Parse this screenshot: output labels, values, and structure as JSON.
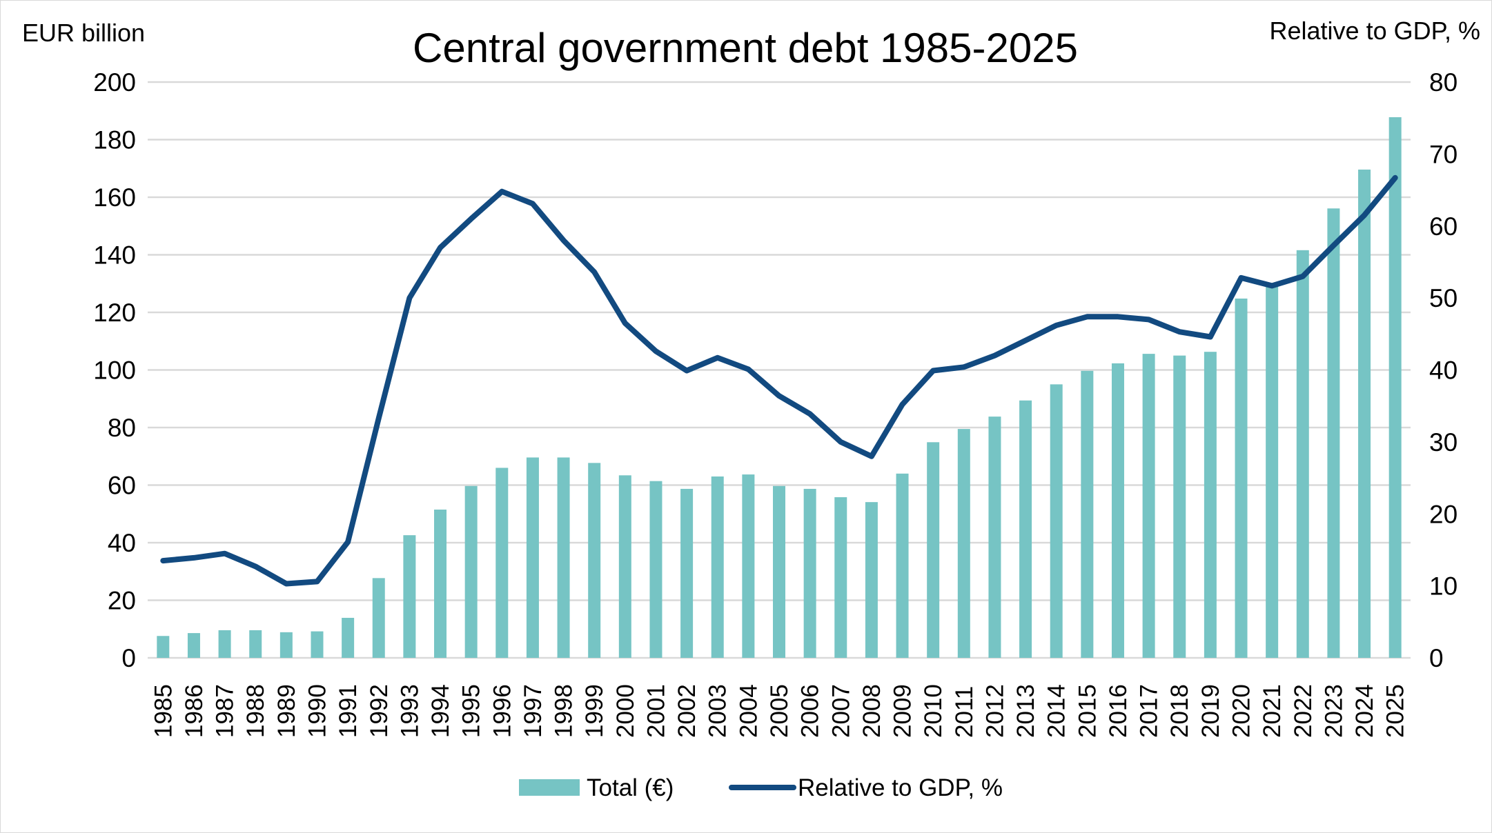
{
  "chart_data": {
    "type": "bar",
    "title": "Central government debt 1985-2025",
    "ylabel": "EUR billion",
    "y2label": "Relative to GDP, %",
    "ylim": [
      0,
      200
    ],
    "y2lim": [
      0,
      80
    ],
    "yticks": [
      "0",
      "20",
      "40",
      "60",
      "80",
      "100",
      "120",
      "140",
      "160",
      "180",
      "200"
    ],
    "y2ticks": [
      "0",
      "10",
      "20",
      "30",
      "40",
      "50",
      "60",
      "70",
      "80"
    ],
    "grid": true,
    "legend_position": "bottom",
    "categories": [
      "1985",
      "1986",
      "1987",
      "1988",
      "1989",
      "1990",
      "1991",
      "1992",
      "1993",
      "1994",
      "1995",
      "1996",
      "1997",
      "1998",
      "1999",
      "2000",
      "2001",
      "2002",
      "2003",
      "2004",
      "2005",
      "2006",
      "2007",
      "2008",
      "2009",
      "2010",
      "2011",
      "2012",
      "2013",
      "2014",
      "2015",
      "2016",
      "2017",
      "2018",
      "2019",
      "2020",
      "2021",
      "2022",
      "2023",
      "2024",
      "2025"
    ],
    "series": [
      {
        "name": "Total (€)",
        "type": "bar",
        "axis": "left",
        "color": "#76C4C4",
        "values": [
          7.6,
          8.6,
          9.6,
          9.6,
          8.9,
          9.2,
          13.9,
          27.7,
          42.6,
          51.5,
          59.7,
          66.0,
          69.6,
          69.6,
          67.7,
          63.4,
          61.4,
          58.7,
          63.0,
          63.7,
          59.7,
          58.7,
          55.8,
          54.1,
          64.0,
          74.9,
          79.5,
          83.8,
          89.4,
          95.0,
          99.7,
          102.3,
          105.6,
          105.0,
          106.3,
          124.8,
          129.0,
          141.6,
          156.1,
          169.6,
          187.8
        ]
      },
      {
        "name": "Relative to GDP, %",
        "type": "line",
        "axis": "right",
        "color": "#124A80",
        "values": [
          13.5,
          13.9,
          14.5,
          12.7,
          10.3,
          10.6,
          16.1,
          33.3,
          50.0,
          57.0,
          61.0,
          64.8,
          63.1,
          58.0,
          53.6,
          46.5,
          42.6,
          39.9,
          41.7,
          40.1,
          36.4,
          33.9,
          30.0,
          28.0,
          35.2,
          39.9,
          40.4,
          42.0,
          44.1,
          46.2,
          47.4,
          47.4,
          47.0,
          45.3,
          44.6,
          52.8,
          51.7,
          53.0,
          57.3,
          61.5,
          66.7
        ]
      }
    ]
  }
}
